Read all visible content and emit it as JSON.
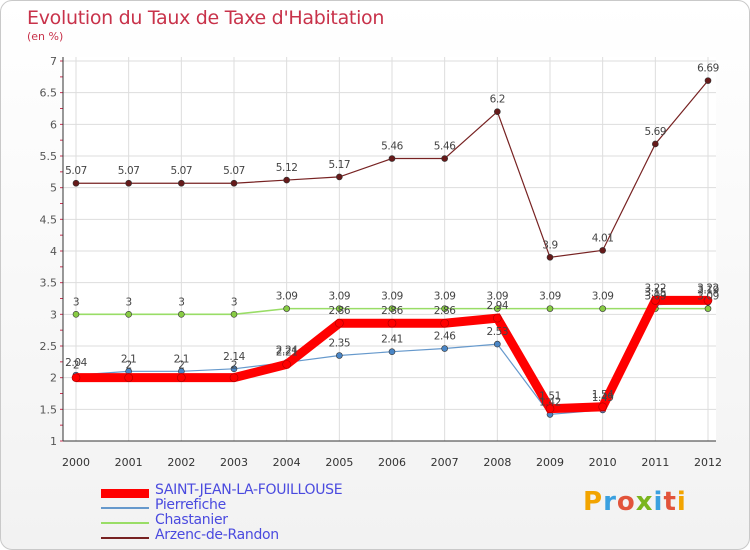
{
  "header": {
    "title": "Evolution du Taux de Taxe d'Habitation",
    "unit": "(en %)"
  },
  "brand": {
    "name": "Proxiti"
  },
  "chart_data": {
    "type": "line",
    "title": "Evolution du Taux de Taxe d'Habitation",
    "ylabel": "(en %)",
    "xlabel": "",
    "x": [
      "2000",
      "2001",
      "2002",
      "2003",
      "2004",
      "2005",
      "2006",
      "2007",
      "2008",
      "2009",
      "2010",
      "2011",
      "2012"
    ],
    "ylim": [
      1,
      7
    ],
    "yticks": [
      "1",
      "1.5",
      "2",
      "2.5",
      "3",
      "3.5",
      "4",
      "4.5",
      "5",
      "5.5",
      "6",
      "6.5",
      "7"
    ],
    "grid": true,
    "legend_position": "bottom-left",
    "series": [
      {
        "name": "SAINT-JEAN-LA-FOUILLOUSE",
        "color": "#ff0000",
        "values": [
          2,
          2,
          2,
          2,
          2.21,
          2.86,
          2.86,
          2.86,
          2.94,
          1.51,
          1.54,
          3.22,
          3.22
        ],
        "labels": [
          "2",
          "2",
          "2",
          "2",
          "2.21",
          "2.86",
          "2.86",
          "2.86",
          "2.94",
          "1.51",
          "1.54",
          "3.22",
          "3.22"
        ]
      },
      {
        "name": "Pierrefiche",
        "color": "#6699cc",
        "values": [
          2.04,
          2.1,
          2.1,
          2.14,
          2.24,
          2.35,
          2.41,
          2.46,
          2.53,
          1.42,
          1.49,
          3.15,
          3.19
        ],
        "labels": [
          "2.04",
          "2.1",
          "2.1",
          "2.14",
          "2.24",
          "2.35",
          "2.41",
          "2.46",
          "2.53",
          "1.42",
          "1.49",
          "3.15",
          "3.19"
        ]
      },
      {
        "name": "Chastanier",
        "color": "#99dd66",
        "values": [
          3,
          3,
          3,
          3,
          3.09,
          3.09,
          3.09,
          3.09,
          3.09,
          3.09,
          3.09,
          3.09,
          3.09
        ],
        "labels": [
          "3",
          "3",
          "3",
          "3",
          "3.09",
          "3.09",
          "3.09",
          "3.09",
          "3.09",
          "3.09",
          "3.09",
          "3.09",
          "3.09"
        ]
      },
      {
        "name": "Arzenc-de-Randon",
        "color": "#772222",
        "values": [
          5.07,
          5.07,
          5.07,
          5.07,
          5.12,
          5.17,
          5.46,
          5.46,
          6.2,
          3.9,
          4.01,
          5.69,
          6.69
        ],
        "labels": [
          "5.07",
          "5.07",
          "5.07",
          "5.07",
          "5.12",
          "5.17",
          "5.46",
          "5.46",
          "6.2",
          "3.9",
          "4.01",
          "5.69",
          "6.69"
        ]
      }
    ]
  }
}
